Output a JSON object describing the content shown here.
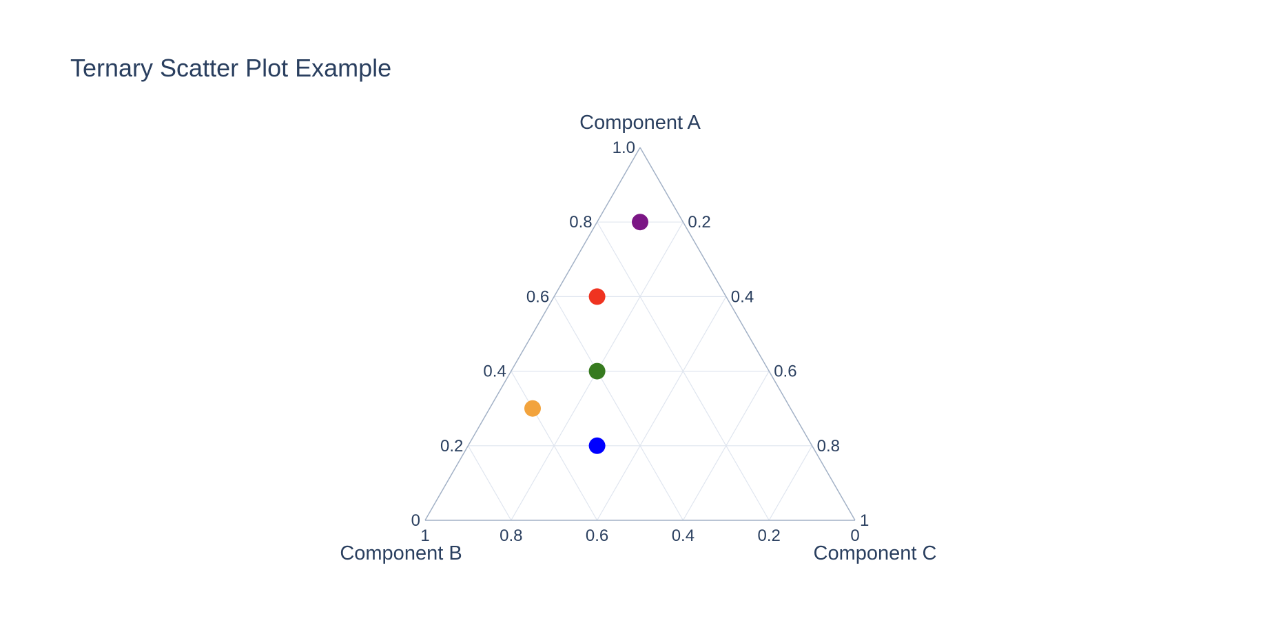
{
  "chart_data": {
    "type": "scatter",
    "subtype": "ternary",
    "title": "Ternary Scatter Plot Example",
    "axes": {
      "a": {
        "title": "Component A",
        "tick_labels": [
          "0",
          "0.2",
          "0.4",
          "0.6",
          "0.8",
          "1.0"
        ]
      },
      "b": {
        "title": "Component B",
        "tick_labels": [
          "1",
          "0.8",
          "0.6",
          "0.4",
          "0.2",
          "0"
        ]
      },
      "c": {
        "title": "Component C",
        "tick_labels": [
          "0.2",
          "0.4",
          "0.6",
          "0.8",
          "1"
        ]
      }
    },
    "points": [
      {
        "a": 0.8,
        "b": 0.1,
        "c": 0.1,
        "color": "#7b1685"
      },
      {
        "a": 0.6,
        "b": 0.3,
        "c": 0.1,
        "color": "#ef3320"
      },
      {
        "a": 0.4,
        "b": 0.4,
        "c": 0.2,
        "color": "#367a1f"
      },
      {
        "a": 0.3,
        "b": 0.6,
        "c": 0.1,
        "color": "#f2a33d"
      },
      {
        "a": 0.2,
        "b": 0.5,
        "c": 0.3,
        "color": "#0000ff"
      }
    ],
    "grid": true,
    "legend": false,
    "colors": {
      "axis_line": "#a2b1c6",
      "grid_line": "#dfe5ef",
      "text": "#2a3f5f"
    }
  }
}
